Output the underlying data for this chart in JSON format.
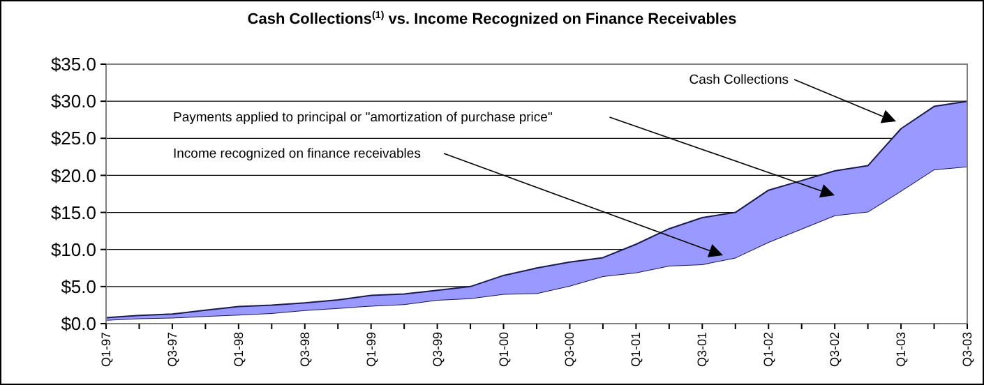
{
  "chart_data": {
    "type": "area",
    "stacked": true,
    "title": "Cash Collections$^{(1)}$ vs. Income Recognized on Finance Receivables",
    "categories": [
      "Q1-97",
      null,
      "Q3-97",
      null,
      "Q1-98",
      null,
      "Q3-98",
      null,
      "Q1-99",
      null,
      "Q3-99",
      null,
      "Q1-00",
      null,
      "Q3-00",
      null,
      "Q1-01",
      null,
      "Q3-01",
      null,
      "Q1-02",
      null,
      "Q3-02",
      null,
      "Q1-03",
      null,
      "Q3-03"
    ],
    "series": [
      {
        "color": "#ffffff",
        "values": [
          0.5,
          0.7,
          0.8,
          1.0,
          1.2,
          1.4,
          1.8,
          2.1,
          2.4,
          2.6,
          3.2,
          3.4,
          4.0,
          4.1,
          5.1,
          6.4,
          6.9,
          7.8,
          8.0,
          8.9,
          11.0,
          12.8,
          14.6,
          15.1,
          17.9,
          20.8,
          21.2
        ]
      },
      {
        "color": "#9999ff",
        "values": [
          0.3,
          0.4,
          0.5,
          0.8,
          1.1,
          1.1,
          1.0,
          1.1,
          1.4,
          1.4,
          1.3,
          1.6,
          2.5,
          3.4,
          3.2,
          2.5,
          3.8,
          5.0,
          6.3,
          6.1,
          7.0,
          6.5,
          6.0,
          6.2,
          8.4,
          8.5,
          8.8
        ]
      }
    ],
    "ylim": [
      0,
      35
    ],
    "yticks": [
      {
        "value": 0,
        "label": "$0.0"
      },
      {
        "value": 5,
        "label": "$5.0"
      },
      {
        "value": 10,
        "label": "$10.0"
      },
      {
        "value": 15,
        "label": "$15.0"
      },
      {
        "value": 20,
        "label": "$20.0"
      },
      {
        "value": 25,
        "label": "$25.0"
      },
      {
        "value": 30,
        "label": "$30.0"
      },
      {
        "value": 35,
        "label": "$35.0"
      }
    ],
    "grid": "y",
    "annotations": [
      "Cash Collections",
      "Payments applied to principal or \"amortization of purchase price\"",
      "Income recognized on finance receivables"
    ]
  }
}
